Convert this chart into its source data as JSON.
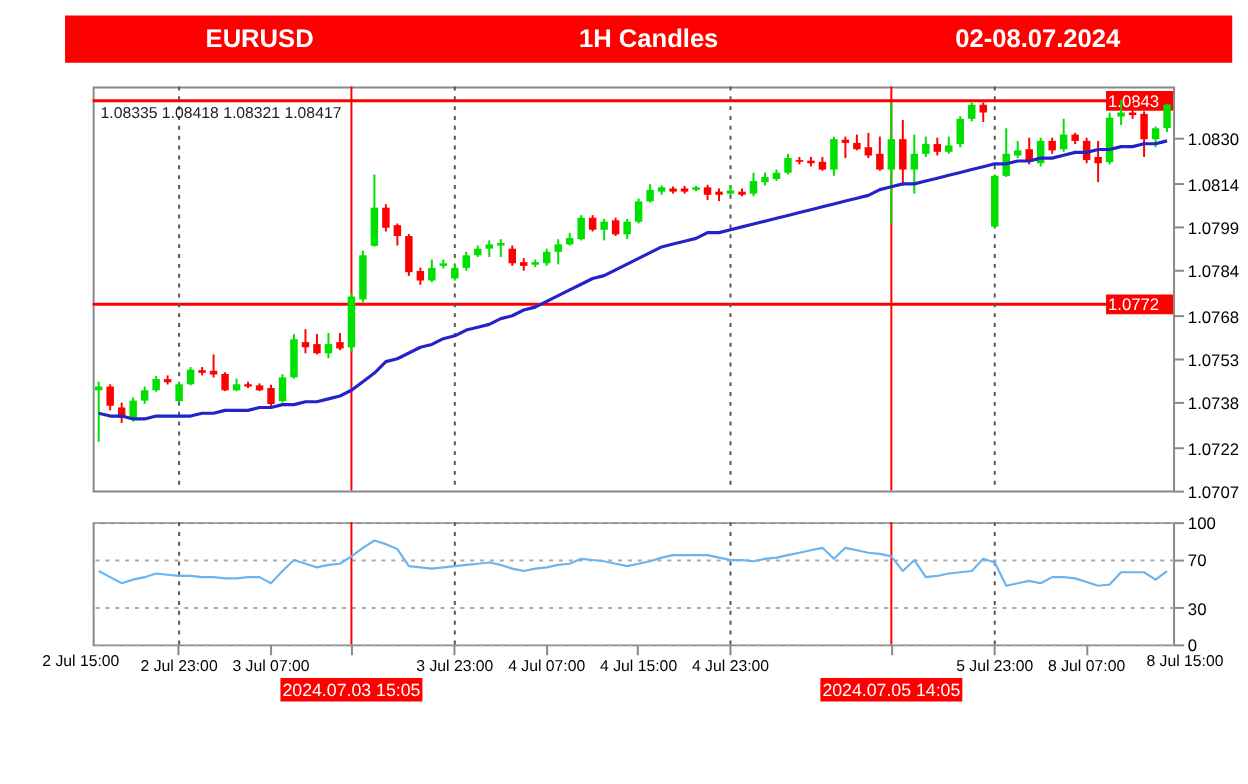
{
  "chart_data": [
    {
      "type": "candlestick",
      "annotations": [
        "EURUSD",
        "1H Candles",
        "02-08.07.2024",
        "1.08335 1.08418 1.08321 1.08417"
      ],
      "categories": [
        null,
        null,
        null,
        null,
        null,
        null,
        null,
        "2 Jul 23:00",
        null,
        null,
        null,
        null,
        null,
        null,
        null,
        "3 Jul 07:00",
        null,
        null,
        null,
        null,
        null,
        null,
        "2024.07.03 15:05",
        null,
        null,
        null,
        null,
        null,
        null,
        null,
        null,
        "3 Jul 23:00",
        null,
        null,
        null,
        null,
        null,
        null,
        null,
        "4 Jul 07:00",
        null,
        null,
        null,
        null,
        null,
        null,
        null,
        "4 Jul 15:00",
        null,
        null,
        null,
        null,
        null,
        null,
        null,
        "4 Jul 23:00",
        null,
        null,
        null,
        null,
        null,
        null,
        null,
        null,
        null,
        null,
        null,
        null,
        null,
        "2024.07.05 14:05",
        null,
        null,
        null,
        null,
        null,
        null,
        null,
        null,
        "5 Jul 23:00",
        null,
        null,
        null,
        null,
        null,
        null,
        null,
        "8 Jul 07:00",
        null,
        null,
        null,
        null,
        null,
        null,
        null
      ],
      "ohlc": [
        [
          1.0742,
          1.0745,
          1.0724,
          1.07433
        ],
        [
          1.07433,
          1.07441,
          1.0735,
          1.07366
        ],
        [
          1.0736,
          1.07377,
          1.07306,
          1.07324
        ],
        [
          1.07324,
          1.07395,
          1.07311,
          1.07384
        ],
        [
          1.07384,
          1.07433,
          1.07373,
          1.0742
        ],
        [
          1.0742,
          1.0747,
          1.07415,
          1.07459
        ],
        [
          1.07459,
          1.07472,
          1.0744,
          1.07448
        ],
        [
          1.07382,
          1.0745,
          1.07377,
          1.07441
        ],
        [
          1.07441,
          1.07501,
          1.07437,
          1.07492
        ],
        [
          1.0749,
          1.07501,
          1.07472,
          1.07481
        ],
        [
          1.07488,
          1.07545,
          1.07465,
          1.07475
        ],
        [
          1.07477,
          1.07483,
          1.07417,
          1.0742
        ],
        [
          1.0742,
          1.07461,
          1.07417,
          1.07441
        ],
        [
          1.07441,
          1.0745,
          1.07428,
          1.07433
        ],
        [
          1.07437,
          1.07444,
          1.07417,
          1.0742
        ],
        [
          1.07428,
          1.07439,
          1.07361,
          1.07372
        ],
        [
          1.07382,
          1.07476,
          1.07377,
          1.07465
        ],
        [
          1.07465,
          1.07616,
          1.07461,
          1.07598
        ],
        [
          1.07588,
          1.07633,
          1.07549,
          1.0757
        ],
        [
          1.07581,
          1.07616,
          1.07545,
          1.07549
        ],
        [
          1.07549,
          1.0762,
          1.07532,
          1.07581
        ],
        [
          1.07588,
          1.0762,
          1.0756,
          1.07566
        ],
        [
          1.0757,
          1.07759,
          1.07554,
          1.07747
        ],
        [
          1.07737,
          1.07907,
          1.07726,
          1.07891
        ],
        [
          1.07924,
          1.08173,
          1.07921,
          1.08057
        ],
        [
          1.08057,
          1.08069,
          1.07974,
          1.07987
        ],
        [
          1.07996,
          1.08002,
          1.07925,
          1.07958
        ],
        [
          1.07958,
          1.07965,
          1.07819,
          1.07832
        ],
        [
          1.07836,
          1.07848,
          1.07788,
          1.07803
        ],
        [
          1.07803,
          1.07876,
          1.07797,
          1.07847
        ],
        [
          1.07854,
          1.07876,
          1.07845,
          1.07863
        ],
        [
          1.0781,
          1.07863,
          1.07803,
          1.07847
        ],
        [
          1.07847,
          1.07903,
          1.07837,
          1.07891
        ],
        [
          1.07891,
          1.07925,
          1.07885,
          1.07914
        ],
        [
          1.07914,
          1.07943,
          1.07885,
          1.07929
        ],
        [
          1.07925,
          1.07947,
          1.07885,
          1.07934
        ],
        [
          1.07914,
          1.07925,
          1.07854,
          1.07863
        ],
        [
          1.07867,
          1.07881,
          1.07837,
          1.07854
        ],
        [
          1.07858,
          1.07876,
          1.0785,
          1.07867
        ],
        [
          1.07863,
          1.07914,
          1.07854,
          1.07903
        ],
        [
          1.07903,
          1.07947,
          1.07859,
          1.07929
        ],
        [
          1.07929,
          1.07969,
          1.07925,
          1.07951
        ],
        [
          1.07947,
          1.08031,
          1.07943,
          1.08022
        ],
        [
          1.08022,
          1.08031,
          1.07974,
          1.0798
        ],
        [
          1.0798,
          1.08018,
          1.07943,
          1.08008
        ],
        [
          1.08013,
          1.08022,
          1.07958,
          1.07964
        ],
        [
          1.07964,
          1.08018,
          1.07947,
          1.08008
        ],
        [
          1.08008,
          1.08089,
          1.08002,
          1.08079
        ],
        [
          1.08079,
          1.08139,
          1.08075,
          1.08119
        ],
        [
          1.08113,
          1.08135,
          1.08102,
          1.08128
        ],
        [
          1.08124,
          1.08131,
          1.08106,
          1.08113
        ],
        [
          1.08124,
          1.08133,
          1.08106,
          1.08113
        ],
        [
          1.08119,
          1.08133,
          1.08115,
          1.08128
        ],
        [
          1.08128,
          1.08137,
          1.08084,
          1.08102
        ],
        [
          1.08113,
          1.08124,
          1.0808,
          1.08102
        ],
        [
          1.08106,
          1.08135,
          1.08102,
          1.08117
        ],
        [
          1.08113,
          1.08124,
          1.08097,
          1.08102
        ],
        [
          1.08106,
          1.08179,
          1.08097,
          1.0815
        ],
        [
          1.08146,
          1.08179,
          1.08135,
          1.08164
        ],
        [
          1.08157,
          1.0819,
          1.0815,
          1.08179
        ],
        [
          1.08179,
          1.08245,
          1.08173,
          1.0823
        ],
        [
          1.08223,
          1.08234,
          1.08208,
          1.08217
        ],
        [
          1.08221,
          1.08234,
          1.08201,
          1.08212
        ],
        [
          1.08217,
          1.08234,
          1.08186,
          1.0819
        ],
        [
          1.0819,
          1.08305,
          1.08168,
          1.08296
        ],
        [
          1.08294,
          1.08305,
          1.0823,
          1.08283
        ],
        [
          1.08283,
          1.08312,
          1.08257,
          1.08261
        ],
        [
          1.08268,
          1.08318,
          1.0823,
          1.08239
        ],
        [
          1.08245,
          1.08305,
          1.08186,
          1.0819
        ],
        [
          1.0819,
          1.08422,
          1.08002,
          1.08296
        ],
        [
          1.08296,
          1.08363,
          1.08135,
          1.0819
        ],
        [
          1.0819,
          1.08312,
          1.08106,
          1.08245
        ],
        [
          1.08245,
          1.08305,
          1.08234,
          1.08279
        ],
        [
          1.08279,
          1.08301,
          1.08239,
          1.08252
        ],
        [
          1.08252,
          1.08305,
          1.08245,
          1.08274
        ],
        [
          1.08279,
          1.08376,
          1.08268,
          1.08367
        ],
        [
          1.08367,
          1.08424,
          1.08358,
          1.08416
        ],
        [
          1.08416,
          1.08424,
          1.08356,
          1.08389
        ],
        [
          1.07991,
          1.08173,
          1.07987,
          1.08168
        ],
        [
          1.08168,
          1.08334,
          1.08164,
          1.08245
        ],
        [
          1.08239,
          1.0829,
          1.0823,
          1.08257
        ],
        [
          1.08261,
          1.08301,
          1.08208,
          1.08217
        ],
        [
          1.08212,
          1.08301,
          1.08201,
          1.0829
        ],
        [
          1.0829,
          1.08301,
          1.08245,
          1.08257
        ],
        [
          1.08261,
          1.08367,
          1.08252,
          1.08312
        ],
        [
          1.08312,
          1.08318,
          1.08279,
          1.0829
        ],
        [
          1.0829,
          1.08301,
          1.08212,
          1.08223
        ],
        [
          1.08234,
          1.0829,
          1.08146,
          1.08212
        ],
        [
          1.08216,
          1.08389,
          1.08208,
          1.08371
        ],
        [
          1.08375,
          1.08433,
          1.08345,
          1.08389
        ],
        [
          1.08389,
          1.08422,
          1.08367,
          1.0838
        ],
        [
          1.08384,
          1.08393,
          1.08234,
          1.08296
        ],
        [
          1.08296,
          1.0834,
          1.08268,
          1.08334
        ],
        [
          1.08335,
          1.08418,
          1.08321,
          1.08417
        ]
      ],
      "colors": [
        "#00e000",
        "#ff0000",
        "#ff0000",
        "#00e000",
        "#00e000",
        "#00e000",
        "#ff0000",
        "#00e000",
        "#00e000",
        "#ff0000",
        "#ff0000",
        "#ff0000",
        "#00e000",
        "#ff0000",
        "#ff0000",
        "#ff0000",
        "#00e000",
        "#00e000",
        "#ff0000",
        "#ff0000",
        "#00e000",
        "#ff0000",
        "#00e000",
        "#00e000",
        "#00e000",
        "#ff0000",
        "#ff0000",
        "#ff0000",
        "#ff0000",
        "#00e000",
        "#00e000",
        "#00e000",
        "#00e000",
        "#00e000",
        "#00e000",
        "#00e000",
        "#ff0000",
        "#ff0000",
        "#00e000",
        "#00e000",
        "#00e000",
        "#00e000",
        "#00e000",
        "#ff0000",
        "#00e000",
        "#ff0000",
        "#00e000",
        "#00e000",
        "#00e000",
        "#00e000",
        "#ff0000",
        "#ff0000",
        "#00e000",
        "#ff0000",
        "#ff0000",
        "#00e000",
        "#ff0000",
        "#00e000",
        "#00e000",
        "#00e000",
        "#00e000",
        "#ff0000",
        "#ff0000",
        "#ff0000",
        "#00e000",
        "#ff0000",
        "#ff0000",
        "#ff0000",
        "#ff0000",
        "#00e000",
        "#ff0000",
        "#00e000",
        "#00e000",
        "#ff0000",
        "#00e000",
        "#00e000",
        "#00e000",
        "#ff0000",
        "#00e000",
        "#00e000",
        "#00e000",
        "#ff0000",
        "#00e000",
        "#ff0000",
        "#00e000",
        "#ff0000",
        "#ff0000",
        "#ff0000",
        "#00e000",
        "#00e000",
        "#ff0000",
        "#ff0000",
        "#00e000",
        "#00e000"
      ],
      "series": [
        {
          "type": "line",
          "color": "#2323c8",
          "values": [
            1.0734,
            1.0733,
            1.0733,
            1.0732,
            1.0732,
            1.0733,
            1.0733,
            1.0733,
            1.0733,
            1.0734,
            1.0734,
            1.0735,
            1.0735,
            1.0735,
            1.0736,
            1.0736,
            1.0737,
            1.0737,
            1.0738,
            1.0738,
            1.0739,
            1.074,
            1.0742,
            1.0745,
            1.0748,
            1.0752,
            1.0753,
            1.0755,
            1.0757,
            1.0758,
            1.076,
            1.0761,
            1.0763,
            1.0764,
            1.0765,
            1.0767,
            1.0768,
            1.077,
            1.0771,
            1.0773,
            1.0775,
            1.0777,
            1.0779,
            1.0781,
            1.0782,
            1.0784,
            1.0786,
            1.0788,
            1.079,
            1.0792,
            1.0793,
            1.0794,
            1.0795,
            1.0797,
            1.0797,
            1.0798,
            1.0799,
            1.08,
            1.0801,
            1.0802,
            1.0803,
            1.0804,
            1.0805,
            1.0806,
            1.0807,
            1.0808,
            1.0809,
            1.081,
            1.0812,
            1.0813,
            1.0814,
            1.0814,
            1.0815,
            1.0816,
            1.0817,
            1.0818,
            1.0819,
            1.082,
            1.0821,
            1.0821,
            1.0822,
            1.0822,
            1.0823,
            1.0823,
            1.0824,
            1.0825,
            1.0825,
            1.0826,
            1.0826,
            1.0827,
            1.0827,
            1.0828,
            1.0828,
            1.0829
          ]
        }
      ],
      "ylim": [
        1.0707,
        1.0848
      ],
      "yticks": [
        {
          "value": 1.0707,
          "label": "1.0707"
        },
        {
          "value": 1.0722,
          "label": "1.0722"
        },
        {
          "value": 1.0738,
          "label": "1.0738"
        },
        {
          "value": 1.0753,
          "label": "1.0753"
        },
        {
          "value": 1.0768,
          "label": "1.0768"
        },
        {
          "value": 1.0784,
          "label": "1.0784"
        },
        {
          "value": 1.0799,
          "label": "1.0799"
        },
        {
          "value": 1.0814,
          "label": "1.0814"
        },
        {
          "value": 1.083,
          "label": "1.0830"
        }
      ],
      "tick_labels": "y",
      "ref_lines": [
        {
          "axis": "y",
          "value": 1.0843,
          "label": "1.0843",
          "color": "#ff0000"
        },
        {
          "axis": "y",
          "value": 1.0772,
          "label": "1.0772",
          "color": "#ff0000"
        },
        {
          "axis": "x",
          "value": "2024.07.03 15:05",
          "color": "#ff0000"
        },
        {
          "axis": "x",
          "value": "2024.07.05 14:05",
          "color": "#ff0000"
        },
        {
          "axis": "x",
          "value": "2 Jul 23:00",
          "color": "#555555",
          "line_style": "dotted"
        },
        {
          "axis": "x",
          "value": "3 Jul 23:00",
          "color": "#555555",
          "line_style": "dotted"
        },
        {
          "axis": "x",
          "value": "4 Jul 23:00",
          "color": "#555555",
          "line_style": "dotted"
        },
        {
          "axis": "x",
          "value": "5 Jul 23:00",
          "color": "#555555",
          "line_style": "dotted"
        }
      ]
    },
    {
      "type": "line",
      "annotations": [
        "2 Jul 15:00",
        "8 Jul 15:00"
      ],
      "categories": [
        null,
        null,
        null,
        null,
        null,
        null,
        null,
        "2 Jul 23:00",
        null,
        null,
        null,
        null,
        null,
        null,
        null,
        "3 Jul 07:00",
        null,
        null,
        null,
        null,
        null,
        null,
        "2024.07.03 15:05",
        null,
        null,
        null,
        null,
        null,
        null,
        null,
        null,
        "3 Jul 23:00",
        null,
        null,
        null,
        null,
        null,
        null,
        null,
        "4 Jul 07:00",
        null,
        null,
        null,
        null,
        null,
        null,
        null,
        "4 Jul 15:00",
        null,
        null,
        null,
        null,
        null,
        null,
        null,
        "4 Jul 23:00",
        null,
        null,
        null,
        null,
        null,
        null,
        null,
        null,
        null,
        null,
        null,
        null,
        null,
        "2024.07.05 14:05",
        null,
        null,
        null,
        null,
        null,
        null,
        null,
        null,
        "5 Jul 23:00",
        null,
        null,
        null,
        null,
        null,
        null,
        null,
        "8 Jul 07:00",
        null,
        null,
        null,
        null,
        null,
        null,
        null
      ],
      "series": [
        {
          "color": "#6ab4f0",
          "values": [
            60,
            55,
            50,
            53,
            55,
            58,
            57,
            56,
            56,
            55,
            55,
            54,
            54,
            55,
            55,
            50,
            60,
            69,
            66,
            63,
            65,
            66,
            72,
            79,
            85,
            82,
            78,
            64,
            63,
            62,
            63,
            64,
            65,
            66,
            67,
            65,
            62,
            60,
            62,
            63,
            65,
            66,
            70,
            69,
            68,
            66,
            64,
            66,
            68,
            71,
            73,
            73,
            73,
            73,
            71,
            69,
            69,
            68,
            70,
            71,
            73,
            75,
            77,
            79,
            70,
            79,
            77,
            75,
            74,
            72,
            60,
            69,
            55,
            56,
            58,
            59,
            60,
            70,
            67,
            48,
            50,
            52,
            50,
            55,
            55,
            54,
            51,
            48,
            49,
            59,
            59,
            59,
            53,
            60
          ]
        }
      ],
      "ylim": [
        0,
        100
      ],
      "yticks": [
        0,
        30,
        70,
        100
      ],
      "grid": "y",
      "ref_lines": [
        {
          "axis": "x",
          "value": "2024.07.03 15:05",
          "color": "#ff0000"
        },
        {
          "axis": "x",
          "value": "2024.07.05 14:05",
          "color": "#ff0000"
        },
        {
          "axis": "x",
          "value": "2 Jul 23:00",
          "color": "#555555",
          "line_style": "dotted"
        },
        {
          "axis": "x",
          "value": "3 Jul 23:00",
          "color": "#555555",
          "line_style": "dotted"
        },
        {
          "axis": "x",
          "value": "4 Jul 23:00",
          "color": "#555555",
          "line_style": "dotted"
        },
        {
          "axis": "x",
          "value": "5 Jul 23:00",
          "color": "#555555",
          "line_style": "dotted"
        }
      ]
    }
  ]
}
